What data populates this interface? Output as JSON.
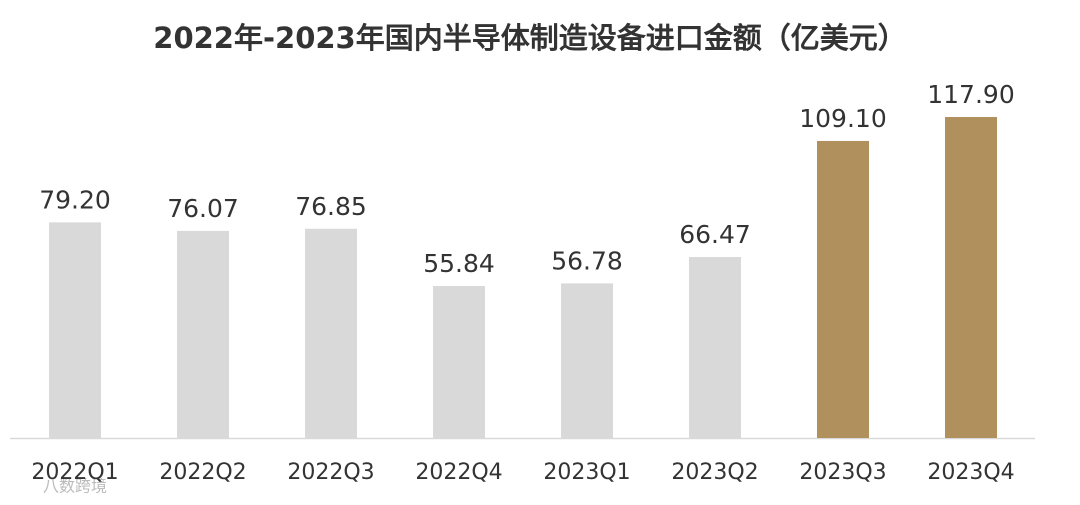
{
  "chart_data": {
    "type": "bar",
    "title": "2022年-2023年国内半导体制造设备进口金额（亿美元）",
    "categories": [
      "2022Q1",
      "2022Q2",
      "2022Q3",
      "2022Q4",
      "2023Q1",
      "2023Q2",
      "2023Q3",
      "2023Q4"
    ],
    "values": [
      79.2,
      76.07,
      76.85,
      55.84,
      56.78,
      66.47,
      109.1,
      117.9
    ],
    "value_labels": [
      "79.20",
      "76.07",
      "76.85",
      "55.84",
      "56.78",
      "66.47",
      "109.10",
      "117.90"
    ],
    "colors": [
      "#d9d9d9",
      "#d9d9d9",
      "#d9d9d9",
      "#d9d9d9",
      "#d9d9d9",
      "#d9d9d9",
      "#b0915d",
      "#b0915d"
    ],
    "watermark": "八数跨境"
  }
}
